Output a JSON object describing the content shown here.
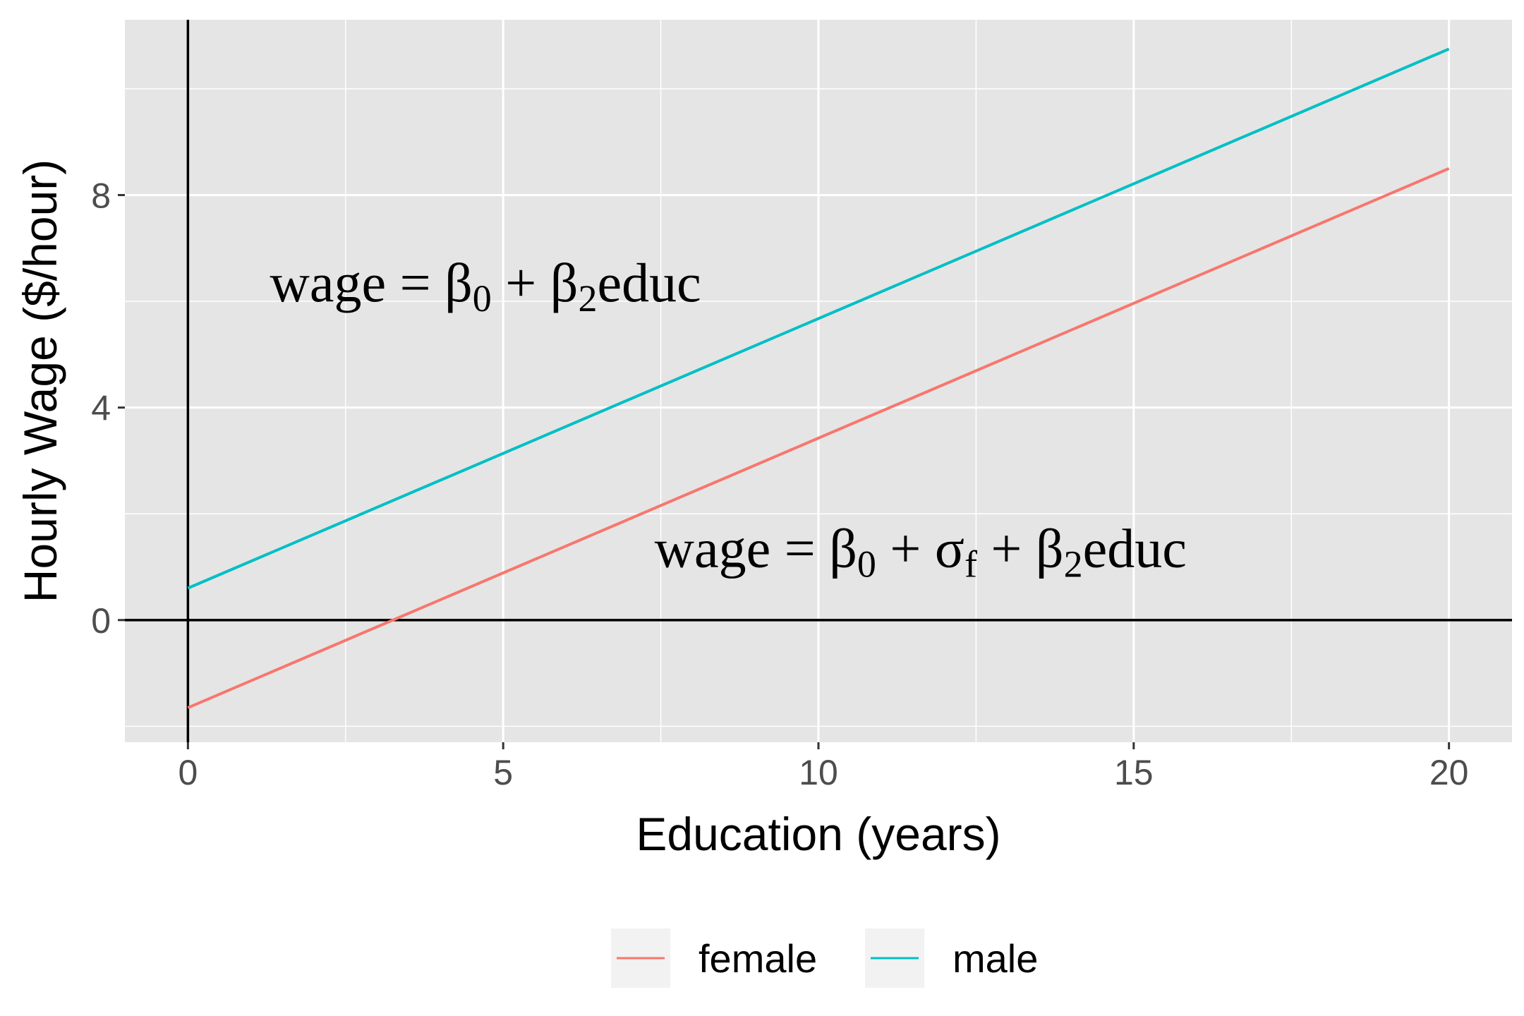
{
  "colors": {
    "panel": "#e5e5e5",
    "grid": "#ffffff",
    "female": "#f8766d",
    "male": "#00bfc4",
    "ref_line": "#000000",
    "tick": "#333333",
    "legend_key": "#f2f2f2"
  },
  "chart_data": {
    "type": "line",
    "title": "",
    "xlabel": "Education (years)",
    "ylabel": "Hourly Wage ($/hour)",
    "xlim": [
      -1,
      21
    ],
    "ylim": [
      -2.3,
      11.3
    ],
    "x_ticks": [
      0,
      5,
      10,
      15,
      20
    ],
    "x_tick_labels": [
      "0",
      "5",
      "10",
      "15",
      "20"
    ],
    "y_ticks": [
      0,
      4,
      8
    ],
    "y_tick_labels": [
      "0",
      "4",
      "8"
    ],
    "grid": true,
    "reference_lines": {
      "h": 0,
      "v": 0
    },
    "series": [
      {
        "name": "female",
        "x": [
          0,
          20
        ],
        "y": [
          -1.65,
          8.5
        ]
      },
      {
        "name": "male",
        "x": [
          0,
          20
        ],
        "y": [
          0.6,
          10.75
        ]
      }
    ],
    "legend": {
      "position": "bottom",
      "entries": [
        "female",
        "male"
      ]
    },
    "annotations": [
      {
        "pre": "wage = β",
        "s1": "0",
        "mid": " + β",
        "s2": "2",
        "post": "educ",
        "x": 1.3,
        "y": 6.0
      },
      {
        "pre": "wage = β",
        "s1": "0",
        "mid": " + σ",
        "s2": "f",
        "mid2": " + β",
        "s3": "2",
        "post": "educ",
        "x": 7.4,
        "y": 1.0
      }
    ]
  }
}
